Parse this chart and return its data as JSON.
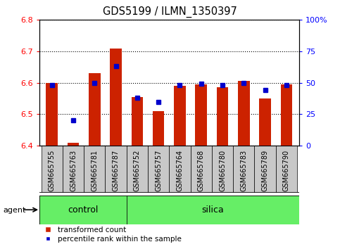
{
  "title": "GDS5199 / ILMN_1350397",
  "samples": [
    "GSM665755",
    "GSM665763",
    "GSM665781",
    "GSM665787",
    "GSM665752",
    "GSM665757",
    "GSM665764",
    "GSM665768",
    "GSM665780",
    "GSM665783",
    "GSM665789",
    "GSM665790"
  ],
  "transformed_counts": [
    6.6,
    6.41,
    6.63,
    6.71,
    6.555,
    6.51,
    6.59,
    6.595,
    6.585,
    6.605,
    6.55,
    6.595
  ],
  "percentile_ranks": [
    48,
    20,
    50,
    63,
    38,
    35,
    48,
    49,
    48,
    50,
    44,
    48
  ],
  "ylim_left": [
    6.4,
    6.8
  ],
  "ylim_right": [
    0,
    100
  ],
  "yticks_left": [
    6.4,
    6.5,
    6.6,
    6.7,
    6.8
  ],
  "yticks_right": [
    0,
    25,
    50,
    75,
    100
  ],
  "ytick_labels_right": [
    "0",
    "25",
    "50",
    "75",
    "100%"
  ],
  "bar_color": "#cc2200",
  "dot_color": "#0000cc",
  "grid_color": "#000000",
  "tick_area_color": "#c8c8c8",
  "green_color": "#66ee66",
  "n_control": 4,
  "agent_label": "agent",
  "control_label": "control",
  "silica_label": "silica",
  "legend_bar_label": "transformed count",
  "legend_dot_label": "percentile rank within the sample",
  "bar_width": 0.55,
  "base_value": 6.4
}
